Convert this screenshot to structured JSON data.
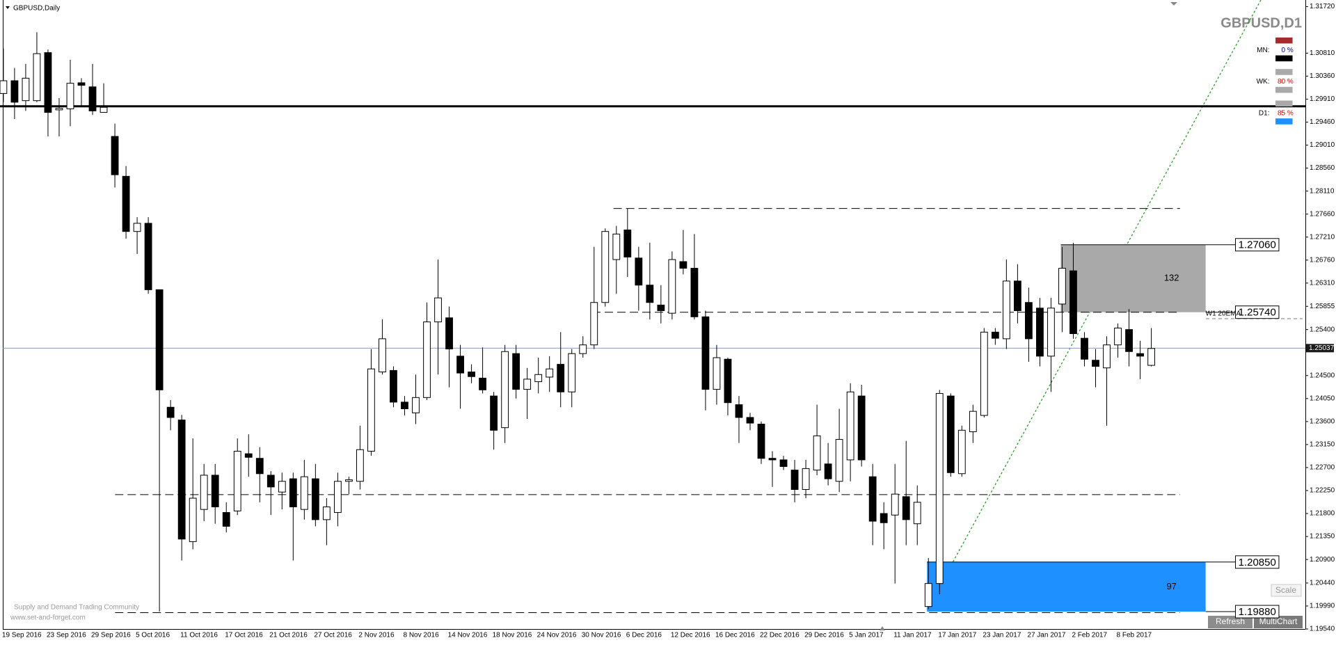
{
  "chart_data": {
    "type": "candlestick",
    "title": "GBPUSD,Daily",
    "symbol": "GBPUSD,D1",
    "categories": [
      "19 Sep 2016",
      null,
      null,
      null,
      "23 Sep 2016",
      null,
      null,
      null,
      "29 Sep 2016",
      null,
      null,
      null,
      "5 Oct 2016",
      null,
      null,
      null,
      "11 Oct 2016",
      null,
      null,
      null,
      "17 Oct 2016",
      null,
      null,
      null,
      "21 Oct 2016",
      null,
      null,
      null,
      "27 Oct 2016",
      null,
      null,
      null,
      "2 Nov 2016",
      null,
      null,
      null,
      "8 Nov 2016",
      null,
      null,
      null,
      "14 Nov 2016",
      null,
      null,
      null,
      "18 Nov 2016",
      null,
      null,
      null,
      "24 Nov 2016",
      null,
      null,
      null,
      "30 Nov 2016",
      null,
      null,
      null,
      "6 Dec 2016",
      null,
      null,
      null,
      "12 Dec 2016",
      null,
      null,
      null,
      "16 Dec 2016",
      null,
      null,
      null,
      "22 Dec 2016",
      null,
      null,
      null,
      "29 Dec 2016",
      null,
      null,
      null,
      "5 Jan 2017",
      null,
      null,
      null,
      "11 Jan 2017",
      null,
      null,
      null,
      "17 Jan 2017",
      null,
      null,
      null,
      "23 Jan 2017",
      null,
      null,
      null,
      "27 Jan 2017",
      null,
      null,
      null,
      "2 Feb 2017",
      null,
      null,
      null,
      "8 Feb 2017",
      null,
      null,
      null
    ],
    "open": [
      1.3002,
      1.3027,
      1.2988,
      1.2988,
      1.3082,
      1.297,
      1.2972,
      1.3023,
      1.3015,
      1.2965,
      1.2918,
      1.284,
      1.2732,
      1.2748,
      1.2618,
      1.2388,
      1.2363,
      1.2125,
      1.2188,
      1.2255,
      1.2182,
      1.2185,
      1.2297,
      1.2288,
      1.2255,
      1.2222,
      1.2248,
      1.2188,
      1.2248,
      1.2168,
      1.2182,
      1.2243,
      1.2243,
      1.2302,
      1.2457,
      1.246,
      1.2398,
      1.2377,
      1.2407,
      1.2555,
      1.2563,
      1.2488,
      1.2457,
      1.2445,
      1.241,
      1.2348,
      1.2493,
      1.2423,
      1.2438,
      1.2447,
      1.2472,
      1.2418,
      1.2493,
      1.251,
      1.2593,
      1.2677,
      1.2735,
      1.268,
      1.2627,
      1.2588,
      1.2572,
      1.2673,
      1.266,
      1.2565,
      1.2423,
      1.2482,
      1.2393,
      1.2368,
      1.2355,
      1.2288,
      1.2285,
      1.2265,
      1.2227,
      1.2265,
      1.2277,
      1.2243,
      1.2285,
      1.241,
      1.2252,
      1.218,
      1.2177,
      1.2213,
      1.216,
      1.1998,
      1.2043,
      1.241,
      1.2258,
      1.234,
      1.2372,
      1.2535,
      1.2522,
      1.2635,
      1.2593,
      1.2582,
      1.2488,
      1.259,
      1.2655,
      1.2523,
      1.248,
      1.2465,
      1.251,
      1.254,
      1.2493,
      1.247
    ],
    "high": [
      1.309,
      1.3052,
      1.306,
      1.3122,
      1.3088,
      1.2993,
      1.3068,
      1.3032,
      1.306,
      1.3022,
      1.2943,
      1.286,
      1.276,
      1.276,
      1.2618,
      1.2402,
      1.2373,
      1.2327,
      1.2277,
      1.2277,
      1.2202,
      1.2327,
      1.2335,
      1.231,
      1.2263,
      1.226,
      1.226,
      1.2285,
      1.2277,
      1.221,
      1.226,
      1.2252,
      1.2352,
      1.2502,
      1.256,
      1.2468,
      1.241,
      1.2452,
      1.2593,
      1.2677,
      1.2585,
      1.251,
      1.2472,
      1.2505,
      1.2418,
      1.251,
      1.251,
      1.2465,
      1.2485,
      1.2488,
      1.2535,
      1.2502,
      1.2527,
      1.2702,
      1.2738,
      1.2743,
      1.2777,
      1.2702,
      1.271,
      1.2627,
      1.2693,
      1.2735,
      1.2727,
      1.2577,
      1.251,
      1.2485,
      1.241,
      1.2377,
      1.236,
      1.2302,
      1.2293,
      1.2285,
      1.2285,
      1.2393,
      1.2318,
      1.2385,
      1.2435,
      1.2432,
      1.2277,
      1.2202,
      1.2277,
      1.2322,
      1.2235,
      1.2093,
      1.2422,
      1.2415,
      1.2352,
      1.2393,
      1.2543,
      1.2543,
      1.2677,
      1.2668,
      1.2622,
      1.2602,
      1.2602,
      1.2702,
      1.271,
      1.2535,
      1.2502,
      1.2527,
      1.2552,
      1.258,
      1.2518,
      1.2543
    ],
    "low": [
      1.2985,
      1.2952,
      1.2968,
      1.2985,
      1.2918,
      1.2918,
      1.2938,
      1.2977,
      1.296,
      1.2965,
      1.2818,
      1.2718,
      1.2688,
      1.261,
      1.1988,
      1.2343,
      1.2088,
      1.211,
      1.2165,
      1.216,
      1.2143,
      1.2177,
      1.2252,
      1.2202,
      1.2177,
      1.2188,
      1.2088,
      1.2168,
      1.2155,
      1.2118,
      1.2155,
      1.2218,
      1.2227,
      1.2293,
      1.2452,
      1.2388,
      1.2372,
      1.2355,
      1.2402,
      1.2452,
      1.2427,
      1.2385,
      1.2435,
      1.2415,
      1.2305,
      1.2318,
      1.2405,
      1.2365,
      1.2415,
      1.2418,
      1.2388,
      1.2388,
      1.2485,
      1.2502,
      1.2585,
      1.261,
      1.2643,
      1.2577,
      1.256,
      1.2552,
      1.256,
      1.2648,
      1.256,
      1.2382,
      1.2393,
      1.2372,
      1.2318,
      1.2343,
      1.2277,
      1.2232,
      1.2265,
      1.2202,
      1.221,
      1.2255,
      1.2235,
      1.2222,
      1.2243,
      1.2272,
      1.2118,
      1.211,
      1.2043,
      1.2118,
      1.2118,
      1.1993,
      1.2022,
      1.2252,
      1.2252,
      1.2318,
      1.2368,
      1.251,
      1.2502,
      1.2552,
      1.2477,
      1.2468,
      1.2418,
      1.2535,
      1.2522,
      1.2468,
      1.2427,
      1.2352,
      1.2485,
      1.2468,
      1.2443,
      1.2468
    ],
    "close": [
      1.3027,
      1.2985,
      1.3032,
      1.308,
      1.2965,
      1.2973,
      1.3022,
      1.3018,
      1.2968,
      1.2975,
      1.2843,
      1.2732,
      1.2748,
      1.2618,
      1.2422,
      1.2368,
      1.213,
      1.221,
      1.2255,
      1.2193,
      1.2155,
      1.2302,
      1.229,
      1.2258,
      1.2232,
      1.2243,
      1.2193,
      1.2252,
      1.2168,
      1.2193,
      1.2243,
      1.2246,
      1.2305,
      1.2463,
      1.2522,
      1.2398,
      1.2385,
      1.2407,
      1.2555,
      1.2602,
      1.2502,
      1.2455,
      1.2448,
      1.2422,
      1.2343,
      1.2497,
      1.2423,
      1.2443,
      1.2452,
      1.2463,
      1.2418,
      1.2493,
      1.251,
      1.2593,
      1.2732,
      1.2727,
      1.2682,
      1.2627,
      1.2593,
      1.2577,
      1.2677,
      1.266,
      1.2565,
      1.2423,
      1.2485,
      1.2397,
      1.2368,
      1.2357,
      1.2288,
      1.2285,
      1.2272,
      1.2227,
      1.2268,
      1.2332,
      1.2248,
      1.2325,
      1.2418,
      1.2285,
      1.2165,
      1.2162,
      1.2218,
      1.2168,
      1.2202,
      1.2043,
      1.2415,
      1.226,
      1.2343,
      1.238,
      1.2535,
      1.2523,
      1.2635,
      1.2577,
      1.2522,
      1.2488,
      1.2582,
      1.266,
      1.2532,
      1.2482,
      1.2468,
      1.251,
      1.2543,
      1.2497,
      1.2488,
      1.2503
    ],
    "up_color": "#ffffff",
    "down_color": "#000000",
    "ylim": [
      1.1954,
      1.3185
    ],
    "yticks": [
      {
        "value": 1.3172,
        "label": "1.31720"
      },
      {
        "value": 1.3081,
        "label": "1.30810"
      },
      {
        "value": 1.3036,
        "label": "1.30360"
      },
      {
        "value": 1.2991,
        "label": "1.29910"
      },
      {
        "value": 1.2946,
        "label": "1.29460"
      },
      {
        "value": 1.2901,
        "label": "1.29010"
      },
      {
        "value": 1.2856,
        "label": "1.28560"
      },
      {
        "value": 1.2811,
        "label": "1.28110"
      },
      {
        "value": 1.2766,
        "label": "1.27660"
      },
      {
        "value": 1.2721,
        "label": "1.27210"
      },
      {
        "value": 1.2676,
        "label": "1.26760"
      },
      {
        "value": 1.2631,
        "label": "1.26310"
      },
      1.25855,
      {
        "value": 1.254,
        "label": "1.25400"
      },
      {
        "value": 1.245,
        "label": "1.24500"
      },
      {
        "value": 1.2405,
        "label": "1.24050"
      },
      {
        "value": 1.236,
        "label": "1.23600"
      },
      {
        "value": 1.2315,
        "label": "1.23150"
      },
      {
        "value": 1.227,
        "label": "1.22700"
      },
      {
        "value": 1.2225,
        "label": "1.22250"
      },
      {
        "value": 1.218,
        "label": "1.21800"
      },
      {
        "value": 1.2135,
        "label": "1.21350"
      },
      {
        "value": 1.209,
        "label": "1.20900"
      },
      {
        "value": 1.2044,
        "label": "1.20440"
      },
      {
        "value": 1.1999,
        "label": "1.19990"
      },
      {
        "value": 1.1954,
        "label": "1.19540"
      }
    ],
    "levels": [
      {
        "value": 1.2977,
        "style": "solid"
      },
      {
        "value": 1.2777,
        "style": "dashed"
      },
      {
        "value": 1.2574,
        "style": "dashed"
      },
      {
        "value": 1.2217,
        "style": "dashed"
      },
      {
        "value": 1.1986,
        "style": "dashed"
      }
    ],
    "zones": [
      {
        "label": "132",
        "low": 1.2574,
        "high": 1.2706,
        "color": "#a9a9a9"
      },
      {
        "label": "97",
        "low": 1.1988,
        "high": 1.2085,
        "color": "#1e90ff"
      }
    ],
    "price_tags": [
      {
        "value": 1.2706,
        "label": "1.27060"
      },
      {
        "value": 1.2574,
        "label": "1.25740"
      },
      {
        "value": 1.2085,
        "label": "1.20850"
      },
      {
        "value": 1.1988,
        "label": "1.19880"
      }
    ],
    "annotation": "W1 20EMA",
    "current_price": {
      "value": 1.25037,
      "label": "1.25037"
    },
    "strength": [
      {
        "name": "MN:",
        "text": "0 %",
        "colors": [
          "#a52a2a",
          "#000000"
        ]
      },
      {
        "name": "WK:",
        "text": "80 %",
        "colors": [
          "#a9a9a9",
          "#a9a9a9"
        ]
      },
      {
        "name": "D1:",
        "text": "85 %",
        "colors": [
          "#a9a9a9",
          "#1e90ff"
        ]
      }
    ],
    "footer": [
      "Supply and Demand Trading Community",
      "www.set-and-forget.com"
    ],
    "buttons": {
      "scale": "Scale",
      "refresh": "Refresh",
      "multichart": "MultiChart"
    }
  }
}
